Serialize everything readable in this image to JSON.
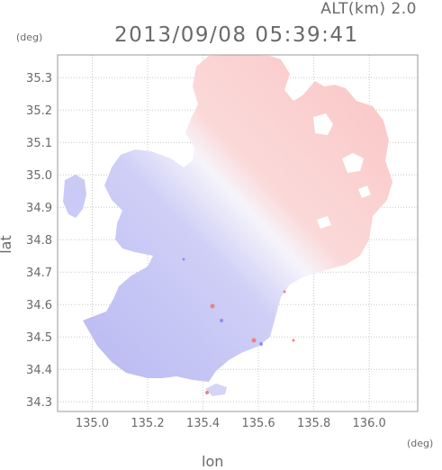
{
  "header": {
    "altitude_label": "ALT(km) 2.0",
    "timestamp": "2013/09/08 05:39:41"
  },
  "map": {
    "x_unit": "(deg)",
    "y_unit": "(deg)",
    "xlabel": "lon",
    "ylabel": "lat",
    "x_range": [
      134.875,
      136.175
    ],
    "y_range": [
      34.27,
      35.37
    ],
    "x_ticks": [
      "135.0",
      "135.2",
      "135.4",
      "135.6",
      "135.8",
      "136.0"
    ],
    "y_ticks": [
      "35.3",
      "35.2",
      "35.1",
      "35.0",
      "34.9",
      "34.8",
      "34.7",
      "34.6",
      "34.5",
      "34.4",
      "34.3"
    ],
    "colors": {
      "approaching": "#c8c8f6",
      "receding": "#fbc6c6",
      "neutral": "#f3f3fc",
      "grid": "#c8c8c8",
      "frame": "#9a9a9a"
    }
  }
}
